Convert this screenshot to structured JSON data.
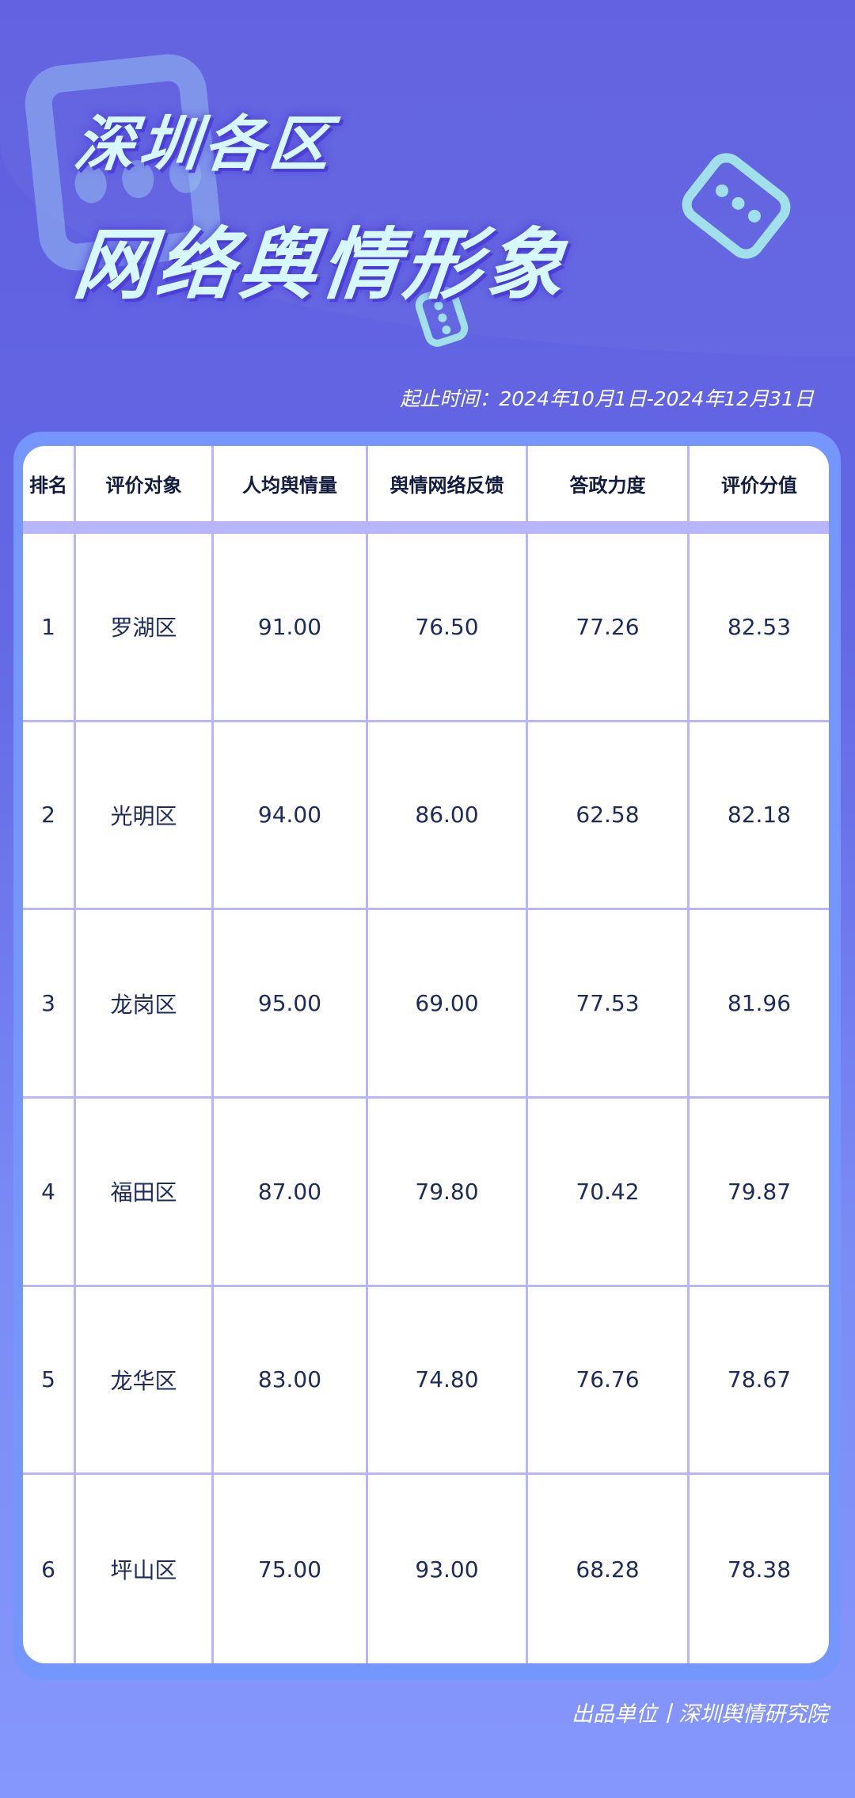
{
  "header": {
    "title_line1": "深圳各区",
    "title_line2": "网络舆情形象",
    "date_range": "起止时间：2024年10月1日-2024年12月31日"
  },
  "table": {
    "columns": [
      "排名",
      "评价对象",
      "人均舆情量",
      "舆情网络反馈",
      "答政力度",
      "评价分值"
    ],
    "rows": [
      [
        "1",
        "罗湖区",
        "91.00",
        "76.50",
        "77.26",
        "82.53"
      ],
      [
        "2",
        "光明区",
        "94.00",
        "86.00",
        "62.58",
        "82.18"
      ],
      [
        "3",
        "龙岗区",
        "95.00",
        "69.00",
        "77.53",
        "81.96"
      ],
      [
        "4",
        "福田区",
        "87.00",
        "79.80",
        "70.42",
        "79.87"
      ],
      [
        "5",
        "龙华区",
        "83.00",
        "74.80",
        "76.76",
        "78.67"
      ],
      [
        "6",
        "坪山区",
        "75.00",
        "93.00",
        "68.28",
        "78.38"
      ]
    ]
  },
  "footer": {
    "producer": "出品单位丨深圳舆情研究院"
  },
  "colors": {
    "background": "#6060e0",
    "title": "#d6f8ff",
    "grid_line": "#b9b5fa",
    "card_border": "#7596fc",
    "text": "#1c2b5c"
  }
}
